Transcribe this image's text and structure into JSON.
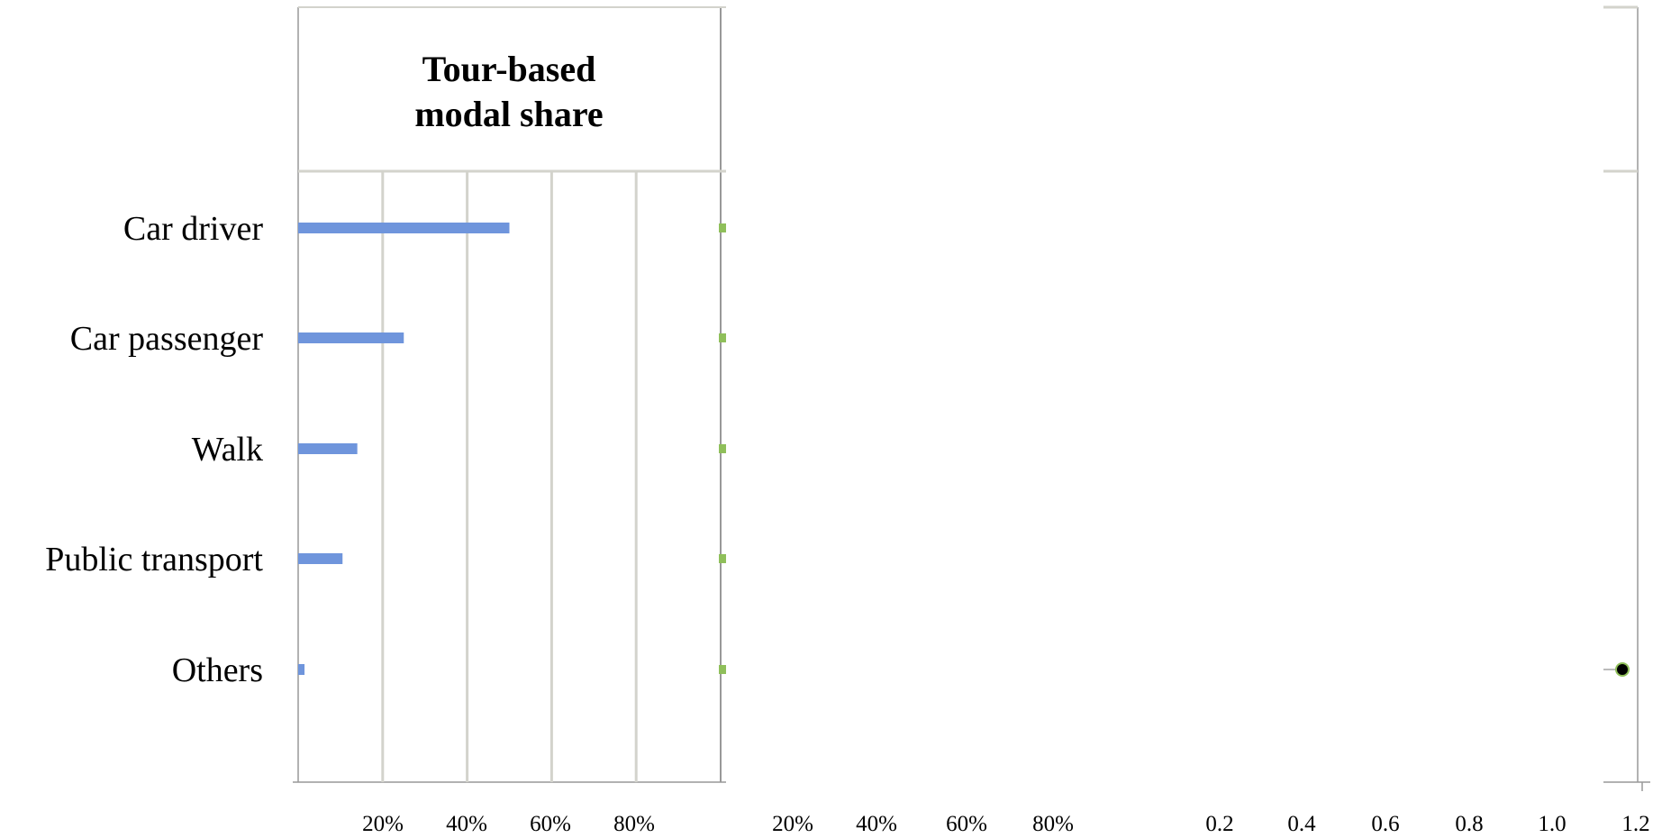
{
  "chart_data": {
    "type": "bar",
    "title_lines": [
      "Tour-based",
      "modal share"
    ],
    "categories": [
      "Car driver",
      "Car passenger",
      "Walk",
      "Public transport",
      "Others"
    ],
    "series": [
      {
        "values": [
          0.5,
          0.25,
          0.14,
          0.105,
          0.015
        ],
        "color": "#6f95dc"
      }
    ],
    "xlim": [
      0,
      1
    ],
    "grid": true,
    "grid_ticks": [
      0.2,
      0.4,
      0.6,
      0.8
    ],
    "panel_ticks": [
      [
        "20%",
        "40%",
        "60%",
        "80%"
      ],
      [
        "20%",
        "40%",
        "60%",
        "80%"
      ],
      [
        "0.2",
        "0.4",
        "0.6",
        "0.8",
        "1.0",
        "1.2"
      ]
    ],
    "marker_color": "#8fbf5a",
    "point_color": "#000000"
  }
}
